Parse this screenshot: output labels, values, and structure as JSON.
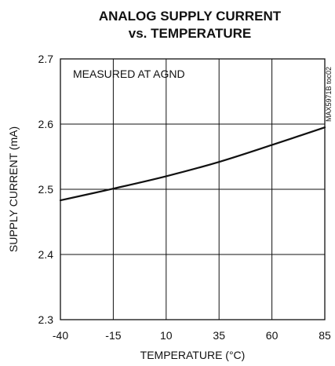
{
  "chart_data": {
    "type": "line",
    "title_line1": "ANALOG SUPPLY CURRENT",
    "title_line2": "vs. TEMPERATURE",
    "xlabel": "TEMPERATURE (°C)",
    "ylabel": "SUPPLY CURRENT (mA)",
    "annotation": "MEASURED AT AGND",
    "side_note": "MAX5971B toc02",
    "xlim": [
      -40,
      85
    ],
    "ylim": [
      2.3,
      2.7
    ],
    "x_ticks": [
      -40,
      -15,
      10,
      35,
      60,
      85
    ],
    "x_tick_labels": [
      "-40",
      "-15",
      "10",
      "35",
      "60",
      "85"
    ],
    "y_ticks": [
      2.3,
      2.4,
      2.5,
      2.6,
      2.7
    ],
    "y_tick_labels": [
      "2.3",
      "2.4",
      "2.5",
      "2.6",
      "2.7"
    ],
    "grid": true,
    "series": [
      {
        "x": [
          -40,
          -15,
          10,
          35,
          60,
          85
        ],
        "y": [
          2.483,
          2.501,
          2.52,
          2.542,
          2.568,
          2.595
        ]
      }
    ]
  }
}
